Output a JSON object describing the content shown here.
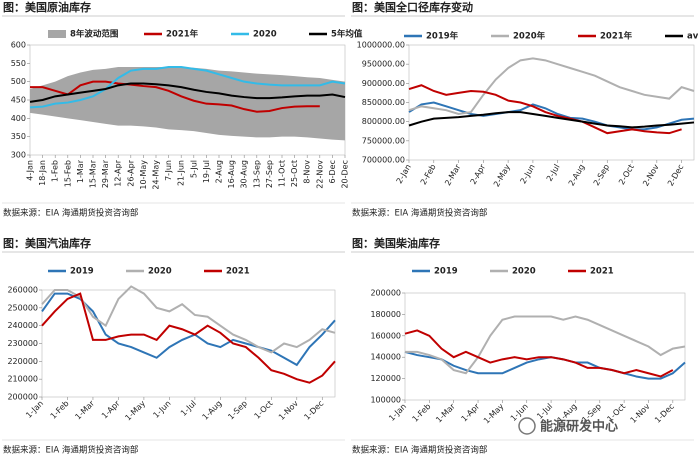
{
  "chart_data": [
    {
      "type": "line",
      "title": "图：美国原油库存",
      "source": "数据来源：EIA    海通期货投资咨询部",
      "categories": [
        "4-Jan",
        "18-Jan",
        "1-Feb",
        "15-Feb",
        "1-Mar",
        "15-Mar",
        "29-Mar",
        "12-Apr",
        "26-Apr",
        "10-May",
        "24-May",
        "7-Jun",
        "21-Jun",
        "5-Jul",
        "19-Jul",
        "2-Aug",
        "16-Aug",
        "30-Aug",
        "13-Sep",
        "27-Sep",
        "11-Oct",
        "25-Oct",
        "8-Nov",
        "22-Nov",
        "6-Dec",
        "20-Dec"
      ],
      "ylim": [
        300,
        600
      ],
      "yticks": [
        300,
        350,
        400,
        450,
        500,
        550,
        600
      ],
      "series": [
        {
          "name": "8年波动范围",
          "type": "range",
          "color": "#a6a6a6",
          "high": [
            480,
            490,
            500,
            515,
            525,
            532,
            535,
            540,
            540,
            540,
            540,
            540,
            540,
            538,
            535,
            530,
            528,
            525,
            522,
            520,
            518,
            515,
            512,
            510,
            505,
            500
          ],
          "low": [
            415,
            410,
            405,
            400,
            395,
            390,
            385,
            380,
            380,
            378,
            375,
            370,
            368,
            365,
            360,
            355,
            352,
            350,
            348,
            348,
            350,
            350,
            348,
            345,
            342,
            340
          ]
        },
        {
          "name": "2021年",
          "color": "#c00000",
          "values": [
            485,
            485,
            475,
            465,
            490,
            500,
            500,
            495,
            492,
            488,
            485,
            475,
            460,
            448,
            440,
            438,
            435,
            425,
            418,
            420,
            428,
            432,
            433,
            433,
            null,
            null
          ]
        },
        {
          "name": "2020",
          "color": "#33bbe8",
          "values": [
            430,
            432,
            440,
            443,
            450,
            460,
            480,
            510,
            530,
            535,
            535,
            540,
            540,
            535,
            530,
            520,
            510,
            500,
            495,
            492,
            490,
            490,
            490,
            490,
            500,
            495
          ]
        },
        {
          "name": "5年均值",
          "color": "#000000",
          "values": [
            445,
            450,
            460,
            465,
            470,
            475,
            480,
            490,
            495,
            495,
            493,
            490,
            485,
            478,
            472,
            468,
            462,
            458,
            455,
            455,
            457,
            460,
            462,
            462,
            465,
            458
          ]
        }
      ]
    },
    {
      "type": "line",
      "title": "图：美国全口径库存变动",
      "source": "数据来源：EIA    海通期货投资咨询部",
      "categories": [
        "2-Jan",
        null,
        "2-Feb",
        null,
        "2-Mar",
        null,
        "2-Apr",
        null,
        "2-May",
        null,
        "2-Jun",
        null,
        "2-Jul",
        null,
        "2-Aug",
        null,
        "2-Sep",
        null,
        "2-Oct",
        null,
        "2-Nov",
        null,
        "2-Dec",
        null
      ],
      "ylim": [
        700000,
        1000000
      ],
      "yticks": [
        {
          "value": 700000,
          "label": "700000.00"
        },
        {
          "value": 750000,
          "label": "750000.00"
        },
        {
          "value": 800000,
          "label": "800000.00"
        },
        {
          "value": 850000,
          "label": "850000.00"
        },
        {
          "value": 900000,
          "label": "900000.00"
        },
        {
          "value": 950000,
          "label": "950000.00"
        },
        {
          "value": 1000000,
          "label": "1000000.00"
        }
      ],
      "series": [
        {
          "name": "2019年",
          "color": "#2e75b6",
          "values": [
            825000,
            845000,
            850000,
            840000,
            830000,
            820000,
            815000,
            820000,
            825000,
            830000,
            845000,
            835000,
            820000,
            810000,
            808000,
            800000,
            790000,
            785000,
            780000,
            780000,
            785000,
            795000,
            805000,
            808000
          ]
        },
        {
          "name": "2020年",
          "color": "#b0b0b0",
          "values": [
            830000,
            840000,
            835000,
            830000,
            820000,
            825000,
            870000,
            910000,
            940000,
            960000,
            965000,
            960000,
            950000,
            940000,
            930000,
            920000,
            905000,
            890000,
            880000,
            870000,
            865000,
            860000,
            890000,
            880000
          ]
        },
        {
          "name": "2021年",
          "color": "#c00000",
          "values": [
            885000,
            895000,
            880000,
            870000,
            875000,
            880000,
            878000,
            870000,
            855000,
            850000,
            840000,
            825000,
            815000,
            808000,
            800000,
            785000,
            770000,
            775000,
            780000,
            775000,
            772000,
            770000,
            780000,
            null
          ]
        },
        {
          "name": "ave",
          "color": "#000000",
          "values": [
            790000,
            800000,
            808000,
            810000,
            812000,
            815000,
            818000,
            822000,
            825000,
            825000,
            820000,
            815000,
            810000,
            805000,
            800000,
            795000,
            790000,
            788000,
            785000,
            787000,
            790000,
            792000,
            795000,
            798000
          ]
        }
      ]
    },
    {
      "type": "line",
      "title": "图：美国汽油库存",
      "source": "数据来源：EIA    海通期货投资咨询部",
      "categories": [
        "1-Jan",
        null,
        "1-Feb",
        null,
        "1-Mar",
        null,
        "1-Apr",
        null,
        "1-May",
        null,
        "1-Jun",
        null,
        "1-Jul",
        null,
        "1-Aug",
        null,
        "1-Sep",
        null,
        "1-Oct",
        null,
        "1-Nov",
        null,
        "1-Dec",
        null
      ],
      "ylim": [
        200000,
        260000
      ],
      "yticks": [
        200000,
        210000,
        220000,
        230000,
        240000,
        250000,
        260000
      ],
      "series": [
        {
          "name": "2019",
          "color": "#2e75b6",
          "values": [
            248000,
            258000,
            258000,
            255000,
            248000,
            235000,
            230000,
            228000,
            225000,
            222000,
            228000,
            232000,
            235000,
            230000,
            228000,
            232000,
            230000,
            228000,
            226000,
            222000,
            218000,
            228000,
            235000,
            243000
          ]
        },
        {
          "name": "2020",
          "color": "#b0b0b0",
          "values": [
            252000,
            260000,
            260000,
            256000,
            245000,
            240000,
            255000,
            262000,
            258000,
            250000,
            248000,
            252000,
            246000,
            245000,
            240000,
            235000,
            232000,
            228000,
            225000,
            230000,
            228000,
            232000,
            238000,
            236000
          ]
        },
        {
          "name": "2021",
          "color": "#c00000",
          "values": [
            240000,
            248000,
            255000,
            258000,
            232000,
            232000,
            234000,
            235000,
            235000,
            232000,
            240000,
            238000,
            235000,
            240000,
            236000,
            230000,
            228000,
            222000,
            215000,
            213000,
            210000,
            208000,
            212000,
            220000
          ]
        }
      ]
    },
    {
      "type": "line",
      "title": "图：美国柴油库存",
      "source": "数据来源：EIA    海通期货投资咨询部",
      "categories": [
        "1-Jan",
        null,
        "1-Feb",
        null,
        "1-Mar",
        null,
        "1-Apr",
        null,
        "1-May",
        null,
        "1-Jun",
        null,
        "1-Jul",
        null,
        "1-Aug",
        null,
        "1-Sep",
        null,
        "1-Oct",
        null,
        "1-Nov",
        null,
        "1-Dec",
        null
      ],
      "ylim": [
        100000,
        200000
      ],
      "yticks": [
        100000,
        120000,
        140000,
        160000,
        180000,
        200000
      ],
      "series": [
        {
          "name": "2019",
          "color": "#2e75b6",
          "values": [
            145000,
            142000,
            140000,
            138000,
            132000,
            128000,
            125000,
            125000,
            125000,
            130000,
            135000,
            138000,
            140000,
            138000,
            135000,
            135000,
            130000,
            128000,
            125000,
            122000,
            120000,
            120000,
            125000,
            135000
          ]
        },
        {
          "name": "2020",
          "color": "#b0b0b0",
          "values": [
            145000,
            145000,
            142000,
            138000,
            128000,
            125000,
            140000,
            160000,
            175000,
            178000,
            178000,
            178000,
            178000,
            175000,
            178000,
            175000,
            170000,
            165000,
            160000,
            155000,
            150000,
            142000,
            148000,
            150000
          ]
        },
        {
          "name": "2021",
          "color": "#c00000",
          "values": [
            162000,
            165000,
            160000,
            148000,
            140000,
            145000,
            140000,
            135000,
            138000,
            140000,
            138000,
            140000,
            140000,
            138000,
            135000,
            130000,
            130000,
            128000,
            125000,
            128000,
            125000,
            122000,
            128000,
            null
          ]
        }
      ]
    }
  ],
  "watermark": "能源研发中心"
}
